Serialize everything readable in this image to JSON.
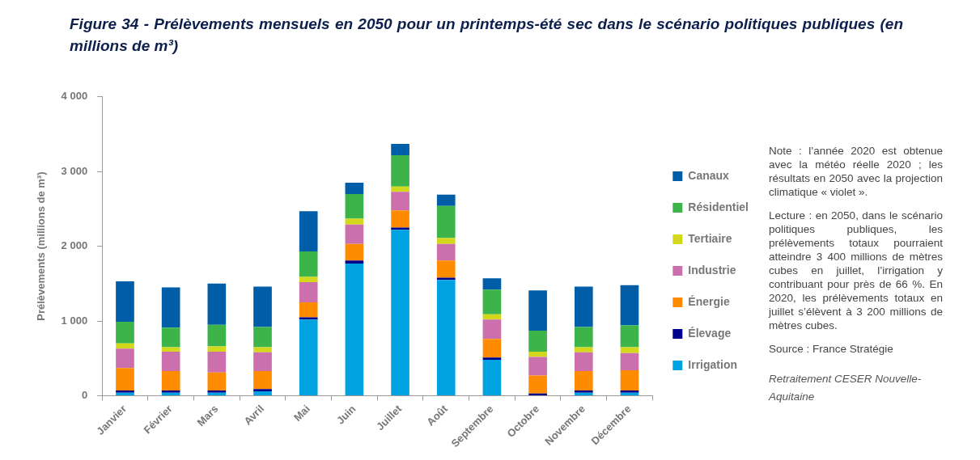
{
  "chart_data": {
    "type": "bar",
    "stacked": true,
    "title": "Figure 34 - Prélèvements mensuels en 2050 pour un printemps-été sec dans le scénario politiques publiques (en millions de m³)",
    "ylabel": "Prélèvements (millions de m³)",
    "categories": [
      "Janvier",
      "Février",
      "Mars",
      "Avril",
      "Mai",
      "Juin",
      "Juillet",
      "Août",
      "Septembre",
      "Octobre",
      "Novembre",
      "Décembre"
    ],
    "series": [
      {
        "name": "Irrigation",
        "color": "#00a3e0",
        "values": [
          40,
          40,
          40,
          60,
          1020,
          1770,
          2220,
          1550,
          480,
          null,
          40,
          40
        ]
      },
      {
        "name": "Élevage",
        "color": "#00008b",
        "values": [
          30,
          30,
          30,
          30,
          30,
          40,
          30,
          30,
          30,
          30,
          30,
          30
        ]
      },
      {
        "name": "Énergie",
        "color": "#ff8c00",
        "values": [
          300,
          260,
          240,
          240,
          200,
          220,
          230,
          230,
          250,
          240,
          260,
          270
        ]
      },
      {
        "name": "Industrie",
        "color": "#cc70ad",
        "values": [
          260,
          260,
          280,
          250,
          270,
          260,
          250,
          220,
          260,
          250,
          250,
          230
        ]
      },
      {
        "name": "Tertiaire",
        "color": "#d4d81c",
        "values": [
          70,
          60,
          70,
          70,
          70,
          80,
          70,
          80,
          70,
          70,
          70,
          80
        ]
      },
      {
        "name": "Résidentiel",
        "color": "#3cb44a",
        "values": [
          290,
          260,
          290,
          270,
          340,
          330,
          420,
          430,
          330,
          280,
          270,
          290
        ]
      },
      {
        "name": "Canaux",
        "color": "#005ea8",
        "values": [
          540,
          540,
          550,
          540,
          540,
          150,
          150,
          150,
          150,
          540,
          540,
          540
        ]
      }
    ],
    "ylim": [
      0,
      4000
    ],
    "yticks": [
      0,
      {
        "value": 1000,
        "label": "1 000"
      },
      {
        "value": 2000,
        "label": "2 000"
      },
      {
        "value": 3000,
        "label": "3 000"
      },
      {
        "value": 4000,
        "label": "4 000"
      }
    ],
    "grid": false,
    "legend": "right",
    "annotations": [
      "Note : l’année 2020 est obtenue avec la météo réelle 2020 ; les résultats en 2050 avec la projection climatique « violet ».",
      "Lecture : en 2050, dans le scénario politiques publiques, les prélèvements totaux pourraient atteindre 3 400 millions de mètres cubes en juillet, l’irrigation y contribuant pour près de 66 %. En 2020, les prélèvements totaux en juillet s’élèvent à 3 200 millions de mètres cubes.",
      "Source : France Stratégie",
      "Retraitement CESER Nouvelle-Aquitaine"
    ]
  }
}
